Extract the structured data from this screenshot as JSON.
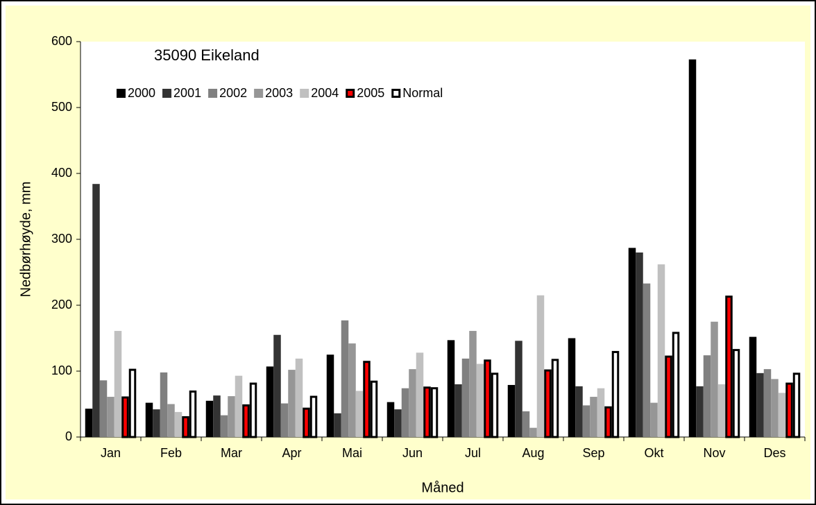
{
  "chart_data": {
    "type": "bar",
    "title": "35090 Eikeland",
    "x_label": "Måned",
    "y_label": "Nedbørhøyde, mm",
    "categories": [
      "Jan",
      "Feb",
      "Mar",
      "Apr",
      "Mai",
      "Jun",
      "Jul",
      "Aug",
      "Sep",
      "Okt",
      "Nov",
      "Des"
    ],
    "series": [
      {
        "name": "2000",
        "color": "#000000",
        "values": [
          43,
          52,
          55,
          107,
          125,
          53,
          147,
          79,
          150,
          287,
          573,
          152
        ]
      },
      {
        "name": "2001",
        "color": "#333333",
        "values": [
          384,
          42,
          63,
          155,
          36,
          42,
          80,
          146,
          77,
          280,
          77,
          97
        ]
      },
      {
        "name": "2002",
        "color": "#808080",
        "values": [
          86,
          98,
          33,
          51,
          177,
          74,
          119,
          39,
          48,
          233,
          124,
          103
        ]
      },
      {
        "name": "2003",
        "color": "#969696",
        "values": [
          61,
          50,
          62,
          102,
          142,
          103,
          161,
          14,
          61,
          52,
          175,
          88
        ]
      },
      {
        "name": "2004",
        "color": "#c0c0c0",
        "values": [
          161,
          38,
          93,
          119,
          70,
          128,
          111,
          215,
          74,
          262,
          80,
          67
        ]
      },
      {
        "name": "2005",
        "color": "#ff0000",
        "edgecolor": "#000000",
        "values": [
          60,
          30,
          48,
          43,
          114,
          75,
          116,
          101,
          45,
          122,
          213,
          81
        ]
      },
      {
        "name": "Normal",
        "color": "#ffffff",
        "edgecolor": "#000000",
        "values": [
          102,
          69,
          81,
          61,
          84,
          74,
          96,
          117,
          129,
          158,
          132,
          96
        ]
      }
    ],
    "ylim": [
      0,
      600
    ],
    "yticks": [
      0,
      100,
      200,
      300,
      400,
      500,
      600
    ],
    "grid": false,
    "legend": "top"
  }
}
